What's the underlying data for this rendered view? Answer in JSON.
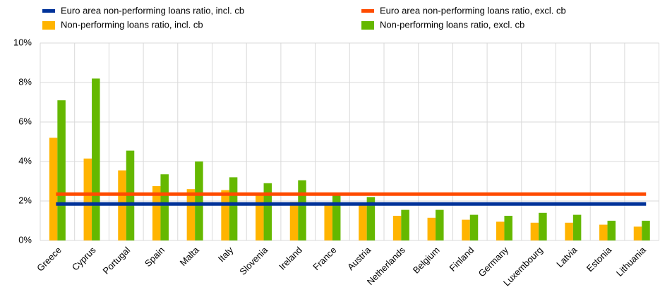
{
  "chart_data": {
    "type": "bar",
    "categories": [
      "Greece",
      "Cyprus",
      "Portugal",
      "Spain",
      "Malta",
      "Italy",
      "Slovenia",
      "Ireland",
      "France",
      "Austria",
      "Netherlands",
      "Belgium",
      "Finland",
      "Germany",
      "Luxembourg",
      "Latvia",
      "Estonia",
      "Lithuania"
    ],
    "series": [
      {
        "name": "Non-performing loans ratio, incl. cb",
        "color": "#ffb400",
        "values": [
          5.2,
          4.15,
          3.55,
          2.75,
          2.6,
          2.55,
          2.3,
          1.95,
          1.8,
          1.8,
          1.25,
          1.15,
          1.05,
          0.95,
          0.9,
          0.9,
          0.8,
          0.7
        ]
      },
      {
        "name": "Non-performing loans ratio, excl. cb",
        "color": "#65b800",
        "values": [
          7.1,
          8.2,
          4.55,
          3.35,
          4.0,
          3.2,
          2.9,
          3.05,
          2.3,
          2.2,
          1.55,
          1.55,
          1.3,
          1.25,
          1.4,
          1.3,
          1.0,
          1.0
        ]
      }
    ],
    "reference_lines": [
      {
        "name": "Euro area non-performing loans ratio, incl. cb",
        "color": "#003299",
        "value": 1.85
      },
      {
        "name": "Euro area non-performing loans ratio, excl. cb",
        "color": "#ff4b00",
        "value": 2.35
      }
    ],
    "ylim": [
      0,
      10
    ],
    "yticks": [
      {
        "value": 0,
        "label": "0%"
      },
      {
        "value": 2,
        "label": "2%"
      },
      {
        "value": 4,
        "label": "4%"
      },
      {
        "value": 6,
        "label": "6%"
      },
      {
        "value": 8,
        "label": "8%"
      },
      {
        "value": 10,
        "label": "10%"
      }
    ],
    "grid": true
  }
}
